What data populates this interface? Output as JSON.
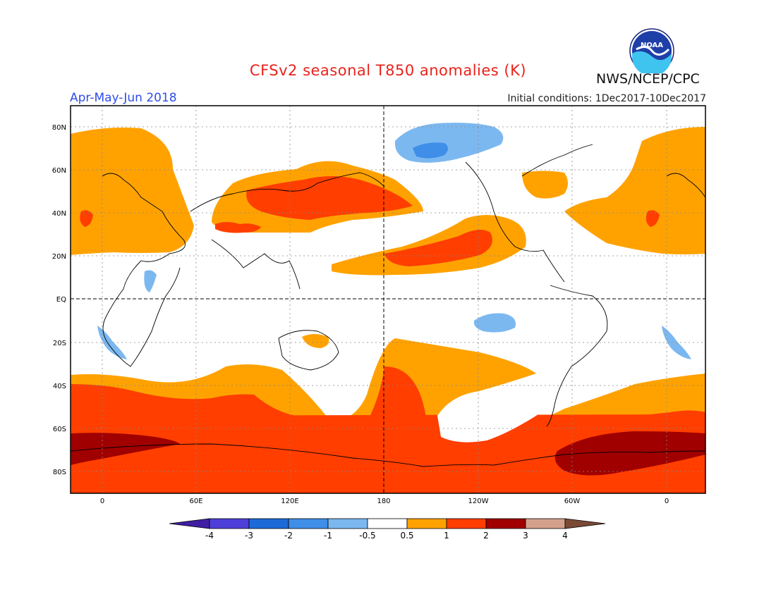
{
  "header": {
    "title": "CFSv2 seasonal T850 anomalies (K)",
    "agency": "NWS/NCEP/CPC",
    "logo_text": "NOAA",
    "season": "Apr-May-Jun 2018",
    "initial_conditions": "Initial conditions: 1Dec2017-10Dec2017"
  },
  "axes": {
    "lat_labels": [
      "80N",
      "60N",
      "40N",
      "20N",
      "EQ",
      "20S",
      "40S",
      "60S",
      "80S"
    ],
    "lon_labels": [
      "0",
      "60E",
      "120E",
      "180",
      "120W",
      "60W",
      "0"
    ]
  },
  "colorbar": {
    "labels": [
      "-4",
      "-3",
      "-2",
      "-1",
      "-0.5",
      "0.5",
      "1",
      "2",
      "3",
      "4"
    ],
    "colors": [
      "#3f1ea3",
      "#4d3fd8",
      "#1c6ad8",
      "#3f8ee8",
      "#7cb8f0",
      "#ffffff",
      "#ffa200",
      "#ff3e00",
      "#a00000",
      "#d4a08c",
      "#7a4a36"
    ]
  },
  "anomaly_colors": {
    "cold_light": "#7cb8f0",
    "cold_mid": "#3f8ee8",
    "warm_light": "#ffa200",
    "warm_mid": "#ff3e00",
    "warm_dark": "#a00000"
  }
}
